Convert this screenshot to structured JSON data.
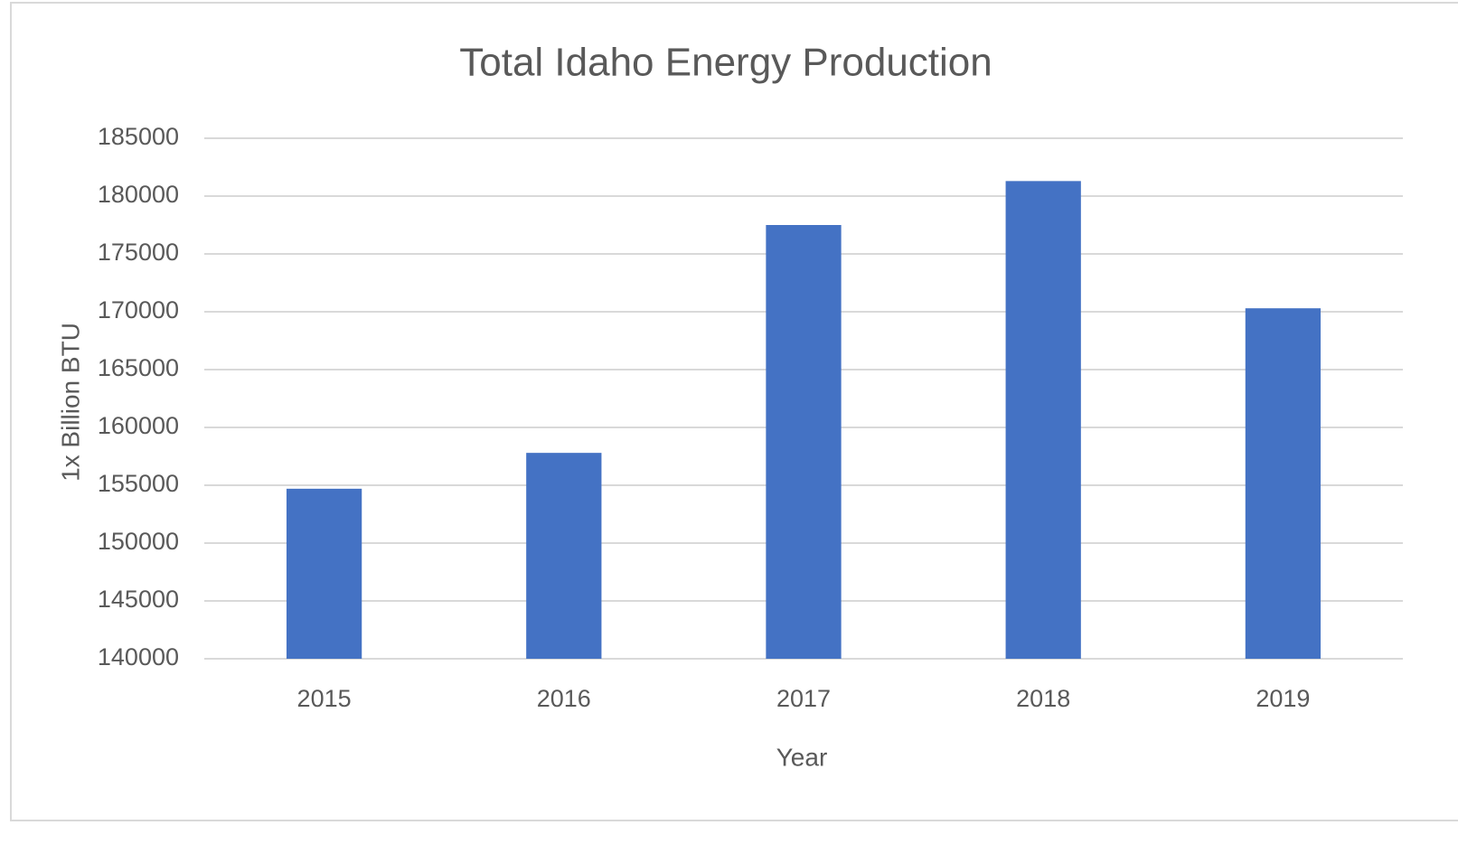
{
  "chart_data": {
    "type": "bar",
    "title": "Total Idaho Energy Production",
    "x_label": "Year",
    "y_label": "1x Billion BTU",
    "categories": [
      "2015",
      "2016",
      "2017",
      "2018",
      "2019"
    ],
    "values": [
      154700,
      157800,
      177500,
      181300,
      170300
    ],
    "color": "#4472c4",
    "ylim": [
      140000,
      185000
    ],
    "yticks": [
      140000,
      145000,
      150000,
      155000,
      160000,
      165000,
      170000,
      175000,
      180000,
      185000
    ],
    "grid": true
  }
}
